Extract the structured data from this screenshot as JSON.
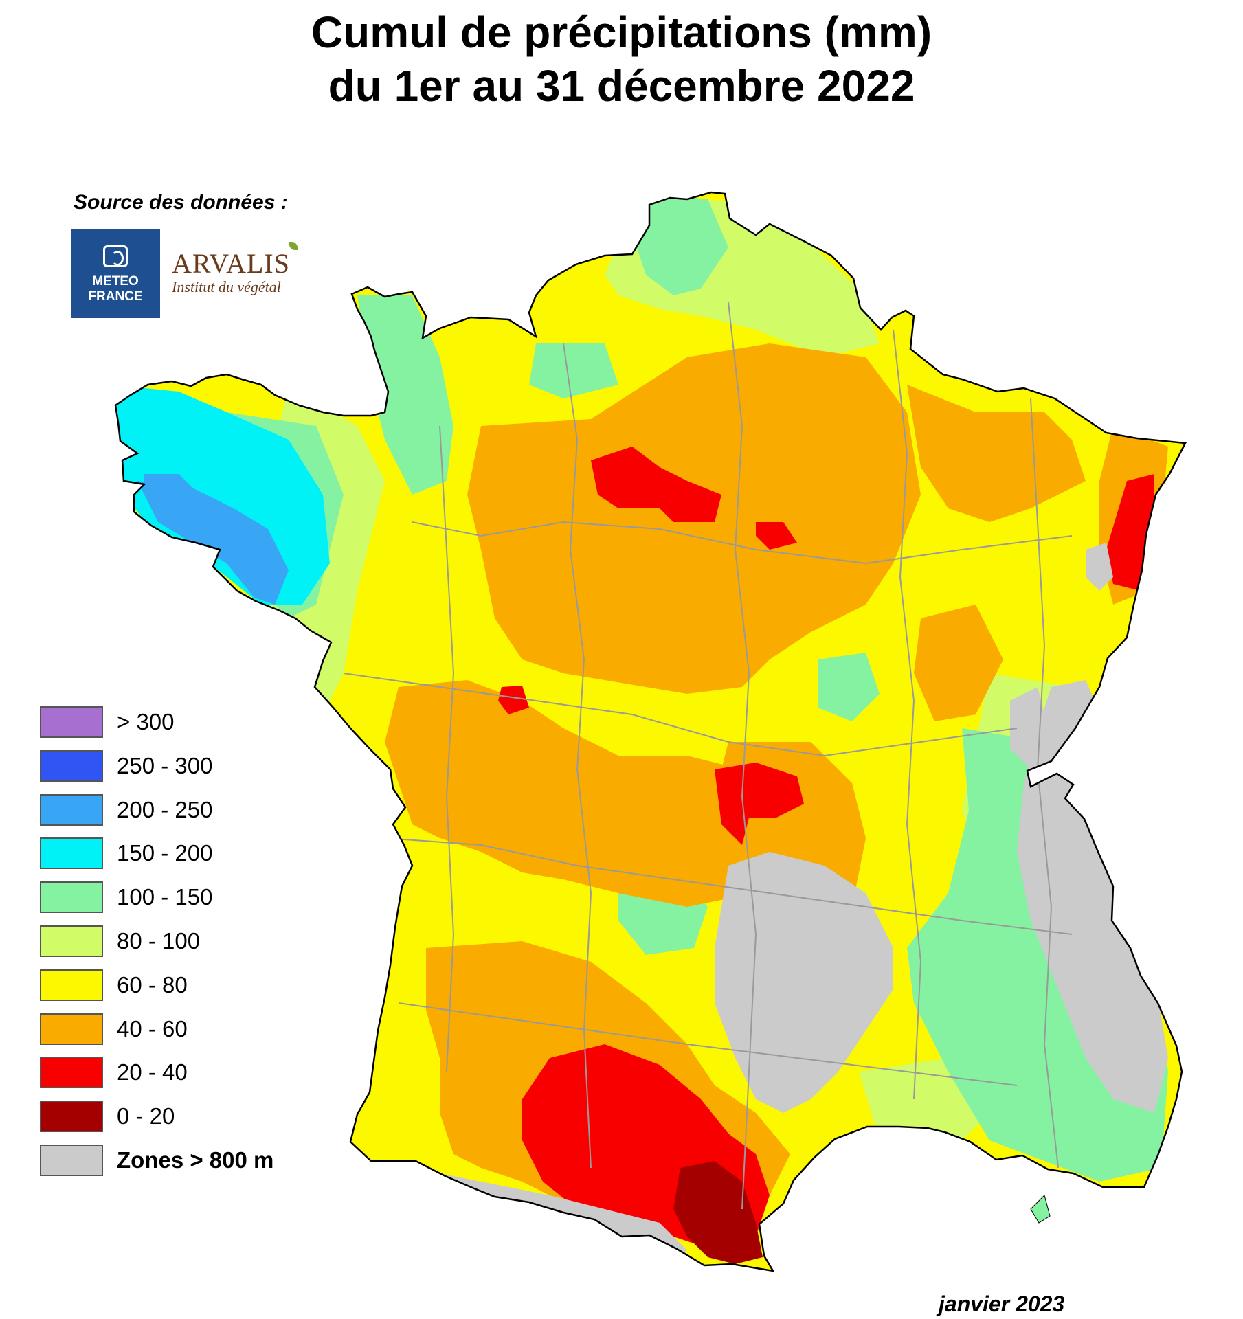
{
  "title": {
    "line1": "Cumul de précipitations (mm)",
    "line2": "du 1er au 31 décembre 2022"
  },
  "source_label": "Source des données :",
  "logos": {
    "meteo_france": {
      "line1": "METEO",
      "line2": "FRANCE",
      "color": "#1d4f91"
    },
    "arvalis": {
      "name": "ARVALIS",
      "subtitle": "Institut du végétal",
      "color": "#6a3a1c"
    }
  },
  "legend": [
    {
      "label": "> 300",
      "color": "#a76fd0"
    },
    {
      "label": "250 - 300",
      "color": "#2f56f5"
    },
    {
      "label": "200 - 250",
      "color": "#38a5f5"
    },
    {
      "label": "150 - 200",
      "color": "#00f2f7"
    },
    {
      "label": "100 - 150",
      "color": "#85f2a2"
    },
    {
      "label": "80 - 100",
      "color": "#d2fb68"
    },
    {
      "label": "60 - 80",
      "color": "#fbf800"
    },
    {
      "label": "40 - 60",
      "color": "#f9ab00"
    },
    {
      "label": "20 - 40",
      "color": "#f90000"
    },
    {
      "label": "0 - 20",
      "color": "#a40000"
    },
    {
      "label": "Zones > 800 m",
      "color": "#cbcbcb",
      "bold": true
    }
  ],
  "date_label": "janvier 2023"
}
